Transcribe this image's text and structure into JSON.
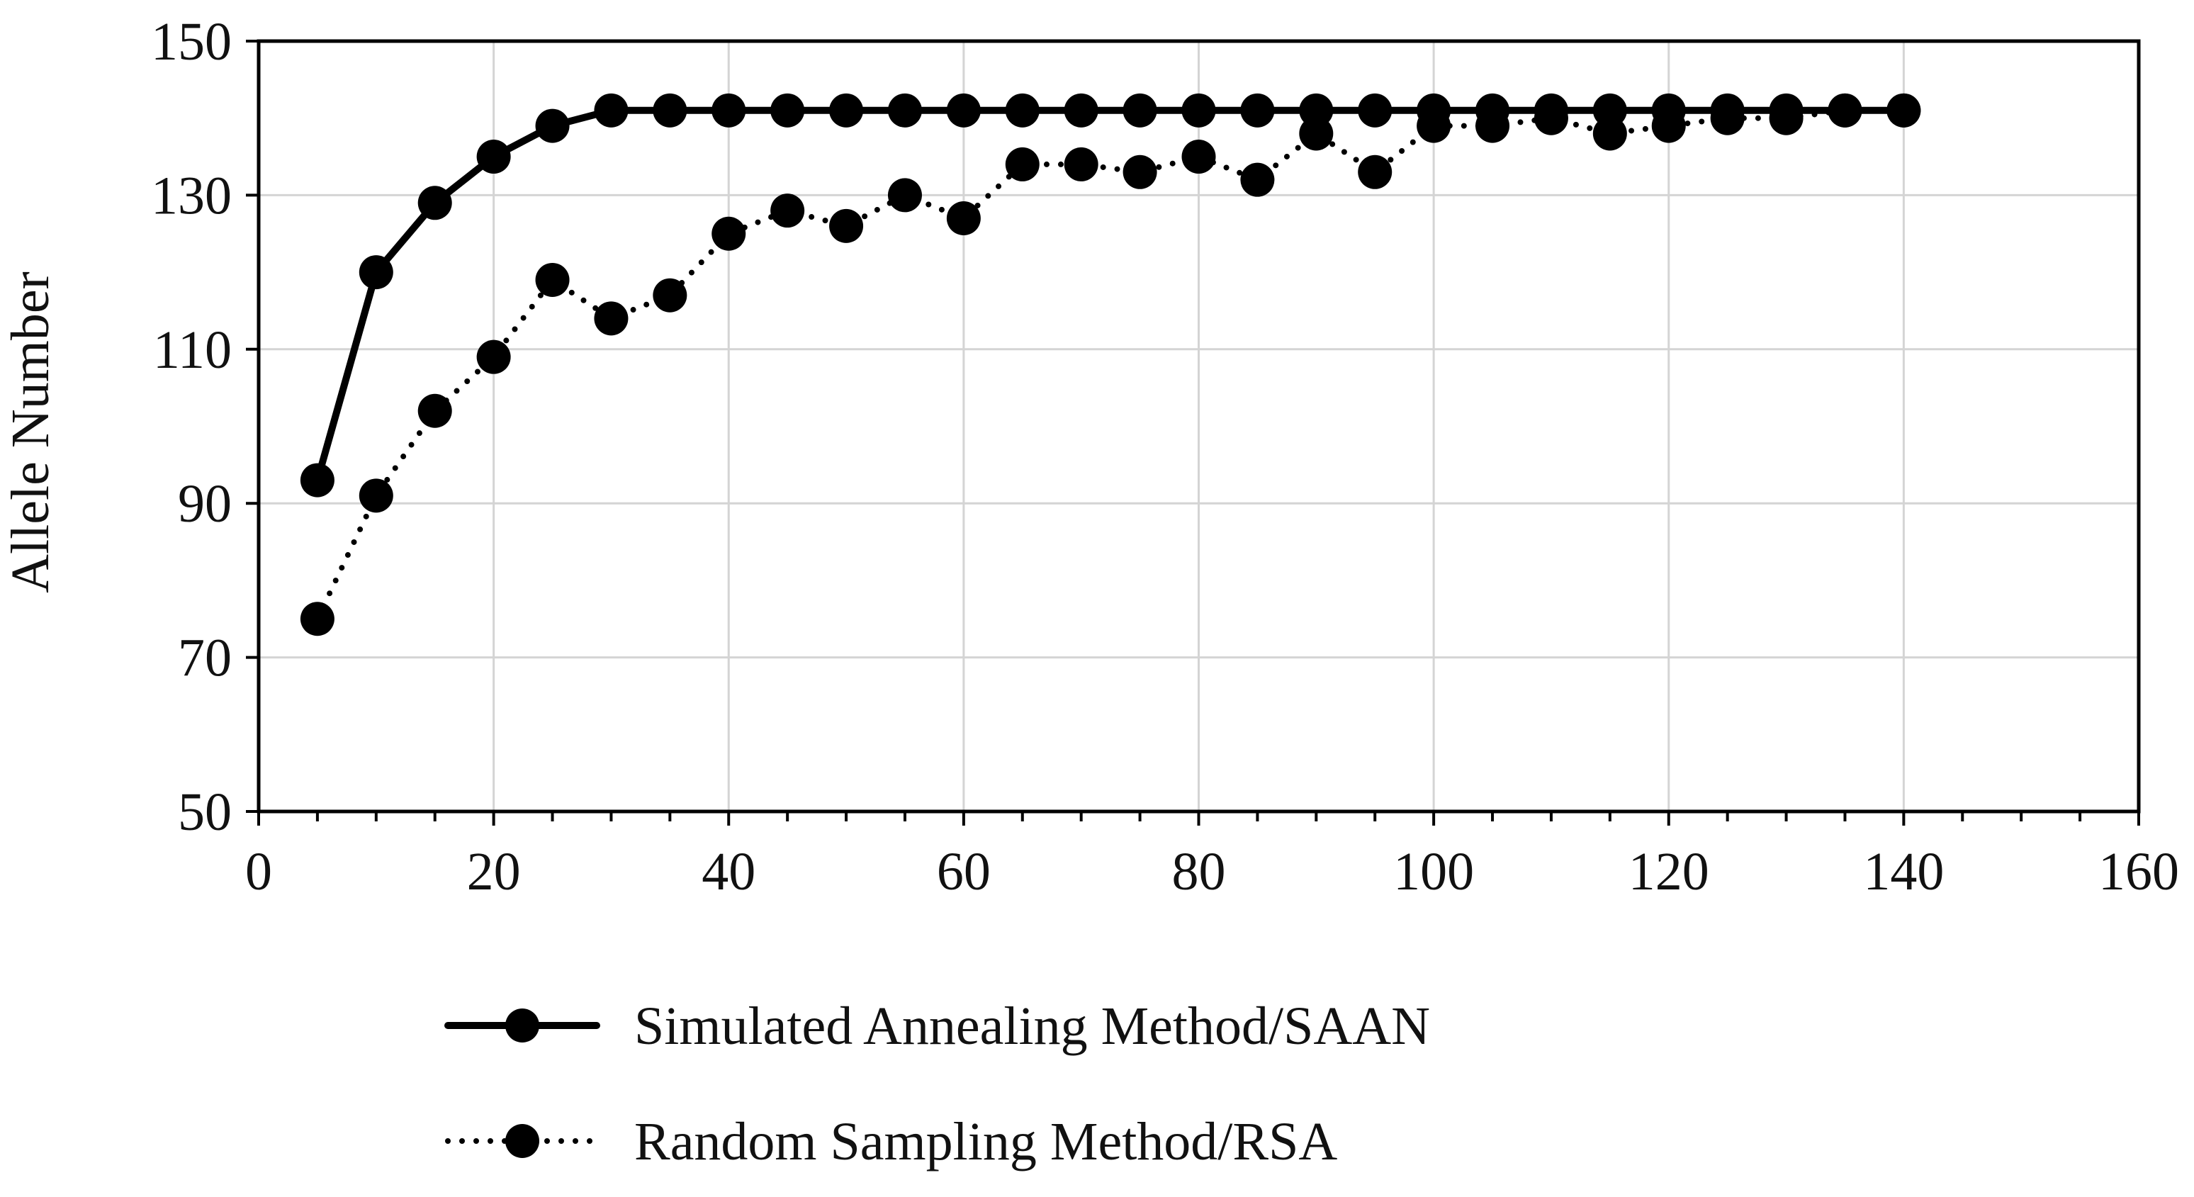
{
  "chart_data": {
    "type": "line",
    "title": "",
    "xlabel": "",
    "ylabel": "Allele Number",
    "xlim": [
      0,
      160
    ],
    "ylim": [
      50,
      150
    ],
    "xticks": [
      0,
      20,
      40,
      60,
      80,
      100,
      120,
      140,
      160
    ],
    "yticks": [
      50,
      70,
      90,
      110,
      130,
      150
    ],
    "xtick_labels": [
      "0",
      "20",
      "40",
      "60",
      "80",
      "100",
      "120",
      "140",
      "160"
    ],
    "ytick_labels": [
      "50",
      "70",
      "90",
      "110",
      "130",
      "150"
    ],
    "x_minor_step": 5,
    "grid": true,
    "legend_position": "bottom-center",
    "series": [
      {
        "name": "Simulated Annealing Method/SAAN",
        "style": "solid",
        "color": "#000000",
        "x": [
          5,
          10,
          15,
          20,
          25,
          30,
          35,
          40,
          45,
          50,
          55,
          60,
          65,
          70,
          75,
          80,
          85,
          90,
          95,
          100,
          105,
          110,
          115,
          120,
          125,
          130,
          135,
          140
        ],
        "values": [
          93,
          120,
          129,
          135,
          139,
          141,
          141,
          141,
          141,
          141,
          141,
          141,
          141,
          141,
          141,
          141,
          141,
          141,
          141,
          141,
          141,
          141,
          141,
          141,
          141,
          141,
          141,
          141
        ]
      },
      {
        "name": "Random Sampling Method/RSA",
        "style": "dotted",
        "color": "#000000",
        "x": [
          5,
          10,
          15,
          20,
          25,
          30,
          35,
          40,
          45,
          50,
          55,
          60,
          65,
          70,
          75,
          80,
          85,
          90,
          95,
          100,
          105,
          110,
          115,
          120,
          125,
          130,
          135,
          140
        ],
        "values": [
          75,
          91,
          102,
          109,
          119,
          114,
          117,
          125,
          128,
          126,
          130,
          127,
          134,
          134,
          133,
          135,
          132,
          138,
          133,
          139,
          139,
          140,
          138,
          139,
          140,
          140,
          141,
          141
        ]
      }
    ]
  }
}
